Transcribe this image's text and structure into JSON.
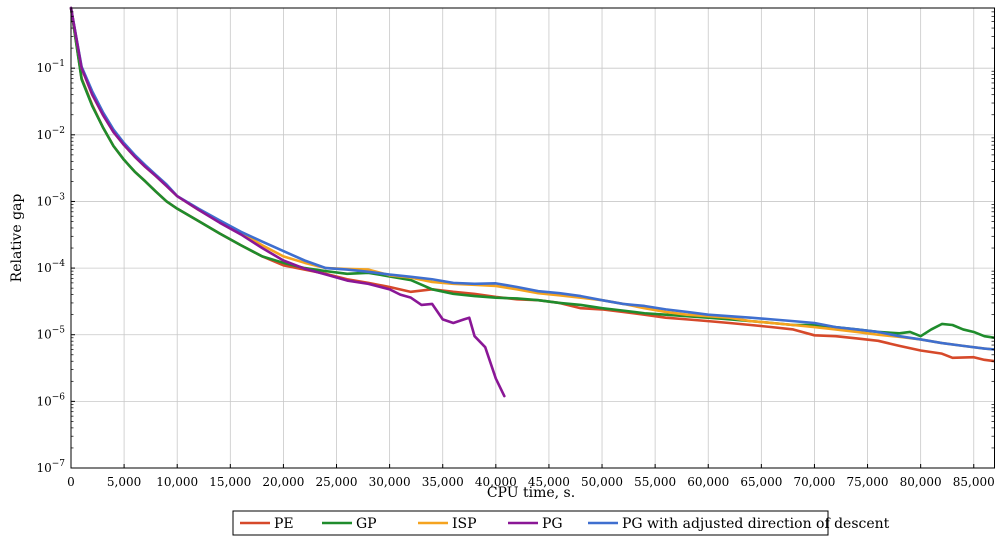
{
  "chart_data": {
    "type": "line",
    "title": "",
    "xlabel": "CPU time, s.",
    "ylabel": "Relative gap",
    "xlim": [
      0,
      87000
    ],
    "ylim": [
      1e-07,
      0.8
    ],
    "yscale": "log",
    "grid": true,
    "legend_position": "bottom",
    "x_ticks": [
      {
        "value": 0,
        "label": "0"
      },
      {
        "value": 5000,
        "label": "5,000"
      },
      {
        "value": 10000,
        "label": "10,000"
      },
      {
        "value": 15000,
        "label": "15,000"
      },
      {
        "value": 20000,
        "label": "20,000"
      },
      {
        "value": 25000,
        "label": "25,000"
      },
      {
        "value": 30000,
        "label": "30,000"
      },
      {
        "value": 35000,
        "label": "35,000"
      },
      {
        "value": 40000,
        "label": "40,000"
      },
      {
        "value": 45000,
        "label": "45,000"
      },
      {
        "value": 50000,
        "label": "50,000"
      },
      {
        "value": 55000,
        "label": "55,000"
      },
      {
        "value": 60000,
        "label": "60,000"
      },
      {
        "value": 65000,
        "label": "65,000"
      },
      {
        "value": 70000,
        "label": "70,000"
      },
      {
        "value": 75000,
        "label": "75,000"
      },
      {
        "value": 80000,
        "label": "80,000"
      },
      {
        "value": 85000,
        "label": "85,000"
      }
    ],
    "y_ticks": [
      {
        "value": 1e-07,
        "base": "10",
        "exp": "−7"
      },
      {
        "value": 1e-06,
        "base": "10",
        "exp": "−6"
      },
      {
        "value": 1e-05,
        "base": "10",
        "exp": "−5"
      },
      {
        "value": 0.0001,
        "base": "10",
        "exp": "−4"
      },
      {
        "value": 0.001,
        "base": "10",
        "exp": "−3"
      },
      {
        "value": 0.01,
        "base": "10",
        "exp": "−2"
      },
      {
        "value": 0.1,
        "base": "10",
        "exp": "−1"
      }
    ],
    "series": [
      {
        "name": "PE",
        "color": "#d6492a",
        "points": [
          [
            0,
            0.8
          ],
          [
            1000,
            0.07
          ],
          [
            2000,
            0.028
          ],
          [
            3000,
            0.013
          ],
          [
            4000,
            0.0068
          ],
          [
            5000,
            0.0042
          ],
          [
            6000,
            0.0028
          ],
          [
            7000,
            0.002
          ],
          [
            8000,
            0.0014
          ],
          [
            9000,
            0.001
          ],
          [
            10000,
            0.00078
          ],
          [
            12000,
            0.00051
          ],
          [
            14000,
            0.00033
          ],
          [
            16000,
            0.00022
          ],
          [
            18000,
            0.00015
          ],
          [
            20000,
            0.00011
          ],
          [
            22000,
            9.5e-05
          ],
          [
            24000,
            8.2e-05
          ],
          [
            26000,
            6.8e-05
          ],
          [
            28000,
            6e-05
          ],
          [
            30000,
            5.2e-05
          ],
          [
            32000,
            4.4e-05
          ],
          [
            34000,
            4.8e-05
          ],
          [
            36000,
            4.4e-05
          ],
          [
            38000,
            4.1e-05
          ],
          [
            40000,
            3.7e-05
          ],
          [
            42000,
            3.4e-05
          ],
          [
            44000,
            3.3e-05
          ],
          [
            46000,
            3e-05
          ],
          [
            48000,
            2.5e-05
          ],
          [
            50000,
            2.4e-05
          ],
          [
            52000,
            2.2e-05
          ],
          [
            54000,
            2e-05
          ],
          [
            56000,
            1.8e-05
          ],
          [
            58000,
            1.7e-05
          ],
          [
            60000,
            1.6e-05
          ],
          [
            62000,
            1.5e-05
          ],
          [
            64000,
            1.4e-05
          ],
          [
            66000,
            1.3e-05
          ],
          [
            68000,
            1.2e-05
          ],
          [
            70000,
            9.8e-06
          ],
          [
            72000,
            9.5e-06
          ],
          [
            74000,
            8.8e-06
          ],
          [
            76000,
            8.1e-06
          ],
          [
            78000,
            6.8e-06
          ],
          [
            80000,
            5.8e-06
          ],
          [
            82000,
            5.2e-06
          ],
          [
            83000,
            4.5e-06
          ],
          [
            85000,
            4.6e-06
          ],
          [
            86000,
            4.2e-06
          ],
          [
            87000,
            4e-06
          ]
        ]
      },
      {
        "name": "GP",
        "color": "#1f8c2c",
        "points": [
          [
            0,
            0.8
          ],
          [
            1000,
            0.068
          ],
          [
            2000,
            0.027
          ],
          [
            3000,
            0.013
          ],
          [
            4000,
            0.0068
          ],
          [
            5000,
            0.0042
          ],
          [
            6000,
            0.0028
          ],
          [
            7000,
            0.002
          ],
          [
            8000,
            0.0014
          ],
          [
            9000,
            0.001
          ],
          [
            10000,
            0.00078
          ],
          [
            12000,
            0.00051
          ],
          [
            14000,
            0.00033
          ],
          [
            16000,
            0.00022
          ],
          [
            18000,
            0.00015
          ],
          [
            20000,
            0.00012
          ],
          [
            22000,
            0.0001
          ],
          [
            24000,
            9e-05
          ],
          [
            26000,
            8.2e-05
          ],
          [
            28000,
            8.5e-05
          ],
          [
            30000,
            7.5e-05
          ],
          [
            32000,
            6.6e-05
          ],
          [
            34000,
            4.8e-05
          ],
          [
            36000,
            4.1e-05
          ],
          [
            38000,
            3.8e-05
          ],
          [
            40000,
            3.6e-05
          ],
          [
            42000,
            3.5e-05
          ],
          [
            44000,
            3.3e-05
          ],
          [
            46000,
            3e-05
          ],
          [
            48000,
            2.8e-05
          ],
          [
            50000,
            2.5e-05
          ],
          [
            52000,
            2.3e-05
          ],
          [
            54000,
            2.1e-05
          ],
          [
            56000,
            2e-05
          ],
          [
            58000,
            1.9e-05
          ],
          [
            60000,
            1.8e-05
          ],
          [
            62000,
            1.7e-05
          ],
          [
            64000,
            1.6e-05
          ],
          [
            66000,
            1.5e-05
          ],
          [
            68000,
            1.4e-05
          ],
          [
            70000,
            1.4e-05
          ],
          [
            72000,
            1.3e-05
          ],
          [
            74000,
            1.2e-05
          ],
          [
            76000,
            1.1e-05
          ],
          [
            78000,
            1.05e-05
          ],
          [
            79000,
            1.1e-05
          ],
          [
            80000,
            9.5e-06
          ],
          [
            81000,
            1.2e-05
          ],
          [
            82000,
            1.45e-05
          ],
          [
            83000,
            1.4e-05
          ],
          [
            84000,
            1.2e-05
          ],
          [
            85000,
            1.1e-05
          ],
          [
            86000,
            9.5e-06
          ],
          [
            87000,
            9e-06
          ]
        ]
      },
      {
        "name": "ISP",
        "color": "#f5a31f",
        "points": [
          [
            0,
            0.8
          ],
          [
            1000,
            0.1
          ],
          [
            2000,
            0.04
          ],
          [
            3000,
            0.02
          ],
          [
            4000,
            0.011
          ],
          [
            5000,
            0.007
          ],
          [
            6000,
            0.0047
          ],
          [
            7000,
            0.0033
          ],
          [
            8000,
            0.0024
          ],
          [
            9000,
            0.0017
          ],
          [
            10000,
            0.0012
          ],
          [
            12000,
            0.00075
          ],
          [
            14000,
            0.0005
          ],
          [
            16000,
            0.00034
          ],
          [
            18000,
            0.00022
          ],
          [
            20000,
            0.00015
          ],
          [
            22000,
            0.00012
          ],
          [
            24000,
            0.0001
          ],
          [
            26000,
            9.7e-05
          ],
          [
            28000,
            9.5e-05
          ],
          [
            30000,
            7.8e-05
          ],
          [
            32000,
            7.2e-05
          ],
          [
            34000,
            6.2e-05
          ],
          [
            36000,
            5.8e-05
          ],
          [
            38000,
            5.6e-05
          ],
          [
            40000,
            5.4e-05
          ],
          [
            42000,
            4.8e-05
          ],
          [
            44000,
            4.2e-05
          ],
          [
            46000,
            3.9e-05
          ],
          [
            48000,
            3.6e-05
          ],
          [
            50000,
            3.3e-05
          ],
          [
            52000,
            2.9e-05
          ],
          [
            54000,
            2.5e-05
          ],
          [
            56000,
            2.2e-05
          ],
          [
            58000,
            2e-05
          ],
          [
            60000,
            1.9e-05
          ],
          [
            62000,
            1.8e-05
          ],
          [
            64000,
            1.6e-05
          ],
          [
            66000,
            1.5e-05
          ],
          [
            68000,
            1.4e-05
          ],
          [
            70000,
            1.3e-05
          ],
          [
            72000,
            1.2e-05
          ],
          [
            74000,
            1.1e-05
          ],
          [
            76000,
            1e-05
          ],
          [
            78000,
            9.3e-06
          ],
          [
            80000,
            8.5e-06
          ],
          [
            82000,
            7.5e-06
          ],
          [
            84000,
            6.8e-06
          ],
          [
            86000,
            6.2e-06
          ],
          [
            87000,
            6e-06
          ]
        ]
      },
      {
        "name": "PG",
        "color": "#8a1796",
        "points": [
          [
            0,
            0.8
          ],
          [
            1000,
            0.1
          ],
          [
            2000,
            0.04
          ],
          [
            3000,
            0.02
          ],
          [
            4000,
            0.011
          ],
          [
            5000,
            0.007
          ],
          [
            6000,
            0.0047
          ],
          [
            7000,
            0.0033
          ],
          [
            8000,
            0.0024
          ],
          [
            9000,
            0.0017
          ],
          [
            10000,
            0.0012
          ],
          [
            12000,
            0.00075
          ],
          [
            14000,
            0.00048
          ],
          [
            16000,
            0.00032
          ],
          [
            18000,
            0.0002
          ],
          [
            20000,
            0.00013
          ],
          [
            22000,
            9.8e-05
          ],
          [
            24000,
            8e-05
          ],
          [
            26000,
            6.5e-05
          ],
          [
            28000,
            5.8e-05
          ],
          [
            30000,
            4.8e-05
          ],
          [
            31000,
            4e-05
          ],
          [
            32000,
            3.6e-05
          ],
          [
            33000,
            2.8e-05
          ],
          [
            34000,
            2.9e-05
          ],
          [
            35000,
            1.7e-05
          ],
          [
            36000,
            1.5e-05
          ],
          [
            37000,
            1.7e-05
          ],
          [
            37500,
            1.8e-05
          ],
          [
            38000,
            9.5e-06
          ],
          [
            39000,
            6.5e-06
          ],
          [
            40000,
            2.2e-06
          ],
          [
            40800,
            1.2e-06
          ]
        ]
      },
      {
        "name": "PG with adjusted direction of descent",
        "color": "#3f6fcf",
        "points": [
          [
            0,
            0.8
          ],
          [
            1000,
            0.105
          ],
          [
            2000,
            0.045
          ],
          [
            3000,
            0.022
          ],
          [
            4000,
            0.012
          ],
          [
            5000,
            0.0075
          ],
          [
            6000,
            0.005
          ],
          [
            7000,
            0.0035
          ],
          [
            8000,
            0.0025
          ],
          [
            9000,
            0.0018
          ],
          [
            10000,
            0.0012
          ],
          [
            12000,
            0.00078
          ],
          [
            14000,
            0.00052
          ],
          [
            16000,
            0.00035
          ],
          [
            18000,
            0.00025
          ],
          [
            20000,
            0.00018
          ],
          [
            22000,
            0.00013
          ],
          [
            24000,
            0.0001
          ],
          [
            26000,
            9.5e-05
          ],
          [
            28000,
            8.8e-05
          ],
          [
            30000,
            8e-05
          ],
          [
            32000,
            7.4e-05
          ],
          [
            34000,
            6.8e-05
          ],
          [
            36000,
            6e-05
          ],
          [
            38000,
            5.8e-05
          ],
          [
            40000,
            5.9e-05
          ],
          [
            42000,
            5.2e-05
          ],
          [
            44000,
            4.5e-05
          ],
          [
            46000,
            4.2e-05
          ],
          [
            48000,
            3.8e-05
          ],
          [
            50000,
            3.3e-05
          ],
          [
            52000,
            2.9e-05
          ],
          [
            54000,
            2.7e-05
          ],
          [
            56000,
            2.4e-05
          ],
          [
            58000,
            2.2e-05
          ],
          [
            60000,
            2e-05
          ],
          [
            62000,
            1.9e-05
          ],
          [
            64000,
            1.8e-05
          ],
          [
            66000,
            1.7e-05
          ],
          [
            68000,
            1.6e-05
          ],
          [
            70000,
            1.5e-05
          ],
          [
            72000,
            1.3e-05
          ],
          [
            74000,
            1.2e-05
          ],
          [
            76000,
            1.1e-05
          ],
          [
            78000,
            9.5e-06
          ],
          [
            80000,
            8.5e-06
          ],
          [
            82000,
            7.5e-06
          ],
          [
            84000,
            6.8e-06
          ],
          [
            86000,
            6.2e-06
          ],
          [
            87000,
            6e-06
          ]
        ]
      }
    ]
  }
}
